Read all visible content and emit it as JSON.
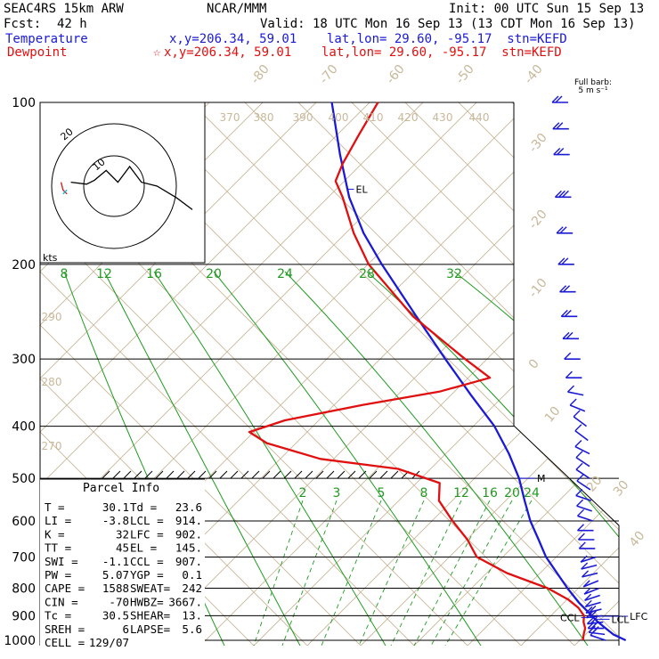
{
  "header": {
    "model": "SEAC4RS 15km ARW",
    "org": "NCAR/MMM",
    "init": "Init: 00 UTC Sun 15 Sep 13",
    "fcst_label": "Fcst:",
    "fcst_value": "42 h",
    "valid": "Valid: 18 UTC Mon 16 Sep 13 (13 CDT Mon 16 Sep 13)",
    "temperature_label": "Temperature",
    "temperature_loc": "x,y=206.34, 59.01    lat,lon= 29.60, -95.17  stn=KEFD",
    "dewpoint_label": "Dewpoint",
    "dewpoint_loc": "x,y=206.34, 59.01    lat,lon= 29.60, -95.17  stn=KEFD",
    "full_barb_line1": "Full barb:",
    "full_barb_line2": "5 m s⁻¹"
  },
  "colors": {
    "temperature": "#1a1ad6",
    "dewpoint": "#e01010",
    "mixing_ratio": "#1f9a1f",
    "adiabat": "#c8b89a",
    "wind_barb": "#1a1ad6"
  },
  "hodograph": {
    "units": "kts",
    "ring_labels": [
      "10",
      "20"
    ],
    "trace": [
      [
        -22,
        -2
      ],
      [
        -14,
        -1
      ],
      [
        -10,
        -3
      ],
      [
        -4,
        -8
      ],
      [
        2,
        -2
      ],
      [
        8,
        -10
      ],
      [
        14,
        -2
      ],
      [
        22,
        0
      ],
      [
        32,
        6
      ],
      [
        40,
        12
      ]
    ],
    "low_trace": [
      [
        -27,
        -2
      ],
      [
        -26,
        2
      ],
      [
        -24,
        4
      ]
    ]
  },
  "chart_data": {
    "type": "skew-t",
    "y_axis": "pressure (hPa), log scale",
    "ylim": [
      1000,
      100
    ],
    "pressure_levels": [
      100,
      200,
      300,
      400,
      500,
      600,
      700,
      800,
      900,
      1000
    ],
    "isotherm_labels": [
      "-80",
      "-70",
      "-60",
      "-50",
      "-40",
      "-30",
      "-20",
      "-10",
      "0",
      "10",
      "20",
      "30",
      "40"
    ],
    "theta_labels": [
      "370",
      "380",
      "390",
      "400",
      "410",
      "420",
      "430",
      "440",
      "290",
      "280",
      "270"
    ],
    "mixing_ratio_labels_upper": [
      "8",
      "12",
      "16",
      "20",
      "24",
      "28",
      "32"
    ],
    "mixing_ratio_labels_lower": [
      "2",
      "3",
      "5",
      "8",
      "12",
      "16",
      "20",
      "24"
    ],
    "series": [
      {
        "name": "Temperature",
        "points": [
          [
            1000,
            30.1
          ],
          [
            975,
            27.5
          ],
          [
            950,
            25.6
          ],
          [
            925,
            23.7
          ],
          [
            900,
            22.0
          ],
          [
            850,
            18.4
          ],
          [
            800,
            15.0
          ],
          [
            750,
            11.6
          ],
          [
            700,
            8.0
          ],
          [
            650,
            4.8
          ],
          [
            600,
            1.3
          ],
          [
            550,
            -2.0
          ],
          [
            500,
            -5.5
          ],
          [
            450,
            -10.0
          ],
          [
            400,
            -15.5
          ],
          [
            350,
            -22.8
          ],
          [
            300,
            -31.0
          ],
          [
            250,
            -40.5
          ],
          [
            200,
            -52.0
          ],
          [
            175,
            -58.5
          ],
          [
            150,
            -65.0
          ],
          [
            125,
            -71.5
          ],
          [
            100,
            -79.0
          ]
        ]
      },
      {
        "name": "Dewpoint",
        "points": [
          [
            1000,
            23.6
          ],
          [
            975,
            23.0
          ],
          [
            950,
            22.5
          ],
          [
            925,
            21.5
          ],
          [
            900,
            20.8
          ],
          [
            870,
            19.0
          ],
          [
            840,
            16.5
          ],
          [
            800,
            12.0
          ],
          [
            750,
            4.0
          ],
          [
            700,
            -2.5
          ],
          [
            650,
            -6.0
          ],
          [
            600,
            -10.5
          ],
          [
            550,
            -15.0
          ],
          [
            510,
            -17.0
          ],
          [
            480,
            -25.0
          ],
          [
            460,
            -38.0
          ],
          [
            430,
            -48.0
          ],
          [
            410,
            -52.0
          ],
          [
            390,
            -48.0
          ],
          [
            365,
            -38.0
          ],
          [
            345,
            -28.0
          ],
          [
            325,
            -22.0
          ],
          [
            300,
            -28.0
          ],
          [
            250,
            -41.0
          ],
          [
            200,
            -54.0
          ],
          [
            175,
            -60.0
          ],
          [
            150,
            -66.0
          ],
          [
            140,
            -69.0
          ],
          [
            130,
            -70.0
          ],
          [
            115,
            -71.0
          ],
          [
            100,
            -72.0
          ]
        ]
      }
    ],
    "level_labels": [
      {
        "text": "EL",
        "pressure": 145
      },
      {
        "text": "LFC",
        "pressure": 902
      },
      {
        "text": "LCL",
        "pressure": 914
      },
      {
        "text": "CCL",
        "pressure": 907
      },
      {
        "text": "M",
        "pressure": 500
      }
    ],
    "wind_barbs": [
      {
        "pressure": 1000,
        "u": 6,
        "v": 2
      },
      {
        "pressure": 975,
        "u": 8,
        "v": 1
      },
      {
        "pressure": 950,
        "u": 9,
        "v": 0
      },
      {
        "pressure": 925,
        "u": 9,
        "v": -1
      },
      {
        "pressure": 900,
        "u": 8,
        "v": -1
      },
      {
        "pressure": 875,
        "u": 8,
        "v": -2
      },
      {
        "pressure": 850,
        "u": 7,
        "v": -2
      },
      {
        "pressure": 825,
        "u": 6,
        "v": -2
      },
      {
        "pressure": 800,
        "u": 5,
        "v": -2
      },
      {
        "pressure": 775,
        "u": 5,
        "v": -2
      },
      {
        "pressure": 750,
        "u": 4,
        "v": -1
      },
      {
        "pressure": 725,
        "u": 4,
        "v": -1
      },
      {
        "pressure": 700,
        "u": 3,
        "v": -1
      },
      {
        "pressure": 675,
        "u": 3,
        "v": 0
      },
      {
        "pressure": 650,
        "u": 3,
        "v": 0
      },
      {
        "pressure": 625,
        "u": 3,
        "v": 0
      },
      {
        "pressure": 600,
        "u": 3,
        "v": 1
      },
      {
        "pressure": 575,
        "u": 3,
        "v": 1
      },
      {
        "pressure": 550,
        "u": 3,
        "v": 1
      },
      {
        "pressure": 525,
        "u": 3,
        "v": 2
      },
      {
        "pressure": 500,
        "u": 3,
        "v": 2
      },
      {
        "pressure": 475,
        "u": 3,
        "v": 2
      },
      {
        "pressure": 450,
        "u": 4,
        "v": 2
      },
      {
        "pressure": 425,
        "u": 4,
        "v": 3
      },
      {
        "pressure": 400,
        "u": 4,
        "v": 3
      },
      {
        "pressure": 375,
        "u": 5,
        "v": 2
      },
      {
        "pressure": 350,
        "u": 5,
        "v": 1
      },
      {
        "pressure": 325,
        "u": 6,
        "v": 0
      },
      {
        "pressure": 300,
        "u": 7,
        "v": 0
      },
      {
        "pressure": 275,
        "u": 8,
        "v": 0
      },
      {
        "pressure": 250,
        "u": 9,
        "v": 0
      },
      {
        "pressure": 225,
        "u": 10,
        "v": 0
      },
      {
        "pressure": 200,
        "u": 11,
        "v": 0
      },
      {
        "pressure": 175,
        "u": 12,
        "v": 0
      },
      {
        "pressure": 150,
        "u": 13,
        "v": 0
      },
      {
        "pressure": 125,
        "u": 12,
        "v": 0
      },
      {
        "pressure": 112,
        "u": 11,
        "v": 0
      },
      {
        "pressure": 100,
        "u": 10,
        "v": 0
      }
    ]
  },
  "parcel_info": {
    "title": "Parcel Info",
    "rows": [
      [
        "T  =",
        "30.1",
        "Td =",
        "23.6"
      ],
      [
        "LI =",
        "-3.8",
        "LCL =",
        "914."
      ],
      [
        "K  =",
        "32",
        "LFC =",
        "902."
      ],
      [
        "TT =",
        "45",
        "EL  =",
        "145."
      ],
      [
        "SWI =",
        "-1.1",
        "CCL =",
        "907."
      ],
      [
        "PW =",
        "5.07",
        "YGP =",
        "0.1"
      ],
      [
        "CAPE =",
        "1588",
        "SWEAT=",
        "242"
      ],
      [
        "CIN =",
        "-70",
        "HWBZ=",
        "3667."
      ],
      [
        "Tc =",
        "30.5",
        "SHEAR=",
        "13."
      ],
      [
        "SREH =",
        "6",
        "LAPSE=",
        "5.6"
      ],
      [
        "CELL =",
        "129/07",
        "",
        ""
      ]
    ]
  }
}
